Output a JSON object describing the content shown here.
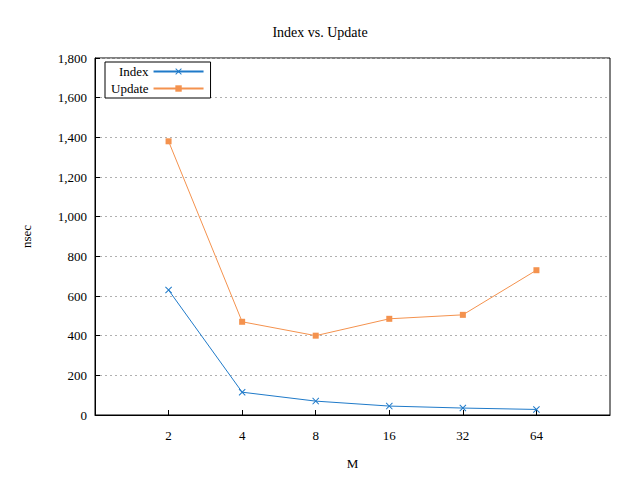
{
  "chart_data": {
    "type": "line",
    "title": "Index vs. Update",
    "x_label": "M",
    "y_label": "nsec",
    "x": [
      2,
      4,
      8,
      16,
      32,
      64
    ],
    "series": [
      {
        "name": "Index",
        "color": "#1f7ac9",
        "marker": "x",
        "values": [
          630,
          115,
          70,
          45,
          35,
          28
        ]
      },
      {
        "name": "Update",
        "color": "#f4924e",
        "marker": "square",
        "values": [
          1380,
          470,
          400,
          485,
          505,
          730
        ]
      }
    ],
    "log": "x",
    "xlim": [
      1,
      128
    ],
    "xticks": [
      2,
      4,
      8,
      16,
      32,
      64
    ],
    "ylim": [
      0,
      1800
    ],
    "yticks": [
      0,
      200,
      400,
      600,
      800,
      1000,
      1200,
      1400,
      1600,
      1800
    ],
    "grid": true,
    "legend": "upper left"
  }
}
